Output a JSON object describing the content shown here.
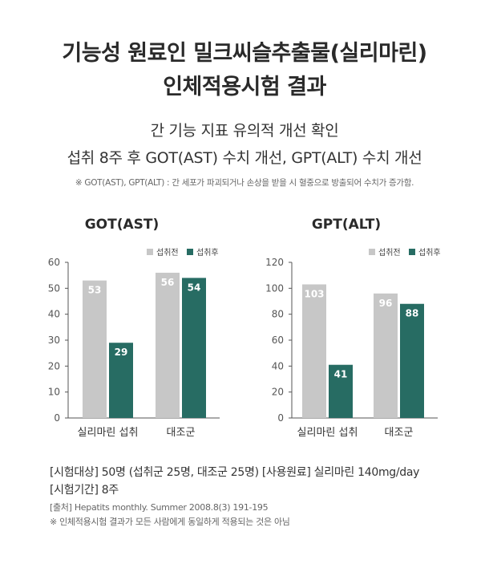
{
  "header": {
    "title_line1": "기능성 원료인 밀크씨슬추출물(실리마린)",
    "title_line2": "인체적용시험 결과",
    "subtitle_line1": "간 기능 지표 유의적 개선 확인",
    "subtitle_line2": "섭취 8주 후 GOT(AST) 수치 개선, GPT(ALT) 수치 개선",
    "note": "※ GOT(AST), GPT(ALT) : 간 세포가 파괴되거나 손상을 받을 시 혈중으로 방출되어 수치가 증가함."
  },
  "colors": {
    "before": "#c7c7c7",
    "after": "#276c63",
    "axis": "#555555",
    "value_label": "#ffffff"
  },
  "chart_data": [
    {
      "type": "bar",
      "title": "GOT(AST)",
      "categories": [
        "실리마린 섭취",
        "대조군"
      ],
      "series": [
        {
          "name": "섭취전",
          "values": [
            53,
            56
          ]
        },
        {
          "name": "섭취후",
          "values": [
            29,
            54
          ]
        }
      ],
      "ylim": [
        0,
        60
      ],
      "yticks": [
        0,
        10,
        20,
        30,
        40,
        50,
        60
      ],
      "legend": "top-right",
      "grid": false
    },
    {
      "type": "bar",
      "title": "GPT(ALT)",
      "categories": [
        "실리마린 섭취",
        "대조군"
      ],
      "series": [
        {
          "name": "섭취전",
          "values": [
            103,
            96
          ]
        },
        {
          "name": "섭취후",
          "values": [
            41,
            88
          ]
        }
      ],
      "ylim": [
        0,
        120
      ],
      "yticks": [
        0,
        20,
        40,
        60,
        80,
        100,
        120
      ],
      "legend": "top-right",
      "grid": false
    }
  ],
  "footer": {
    "line1": "[시험대상] 50명 (섭취군 25명, 대조군 25명)  [사용원료] 실리마린 140mg/day",
    "line2": "[시험기간] 8주",
    "source": "[출처] Hepatits monthly. Summer 2008.8(3) 191-195",
    "disclaimer": "※ 인체적용시험 결과가 모든 사람에게 동일하게 적용되는 것은 아님"
  }
}
